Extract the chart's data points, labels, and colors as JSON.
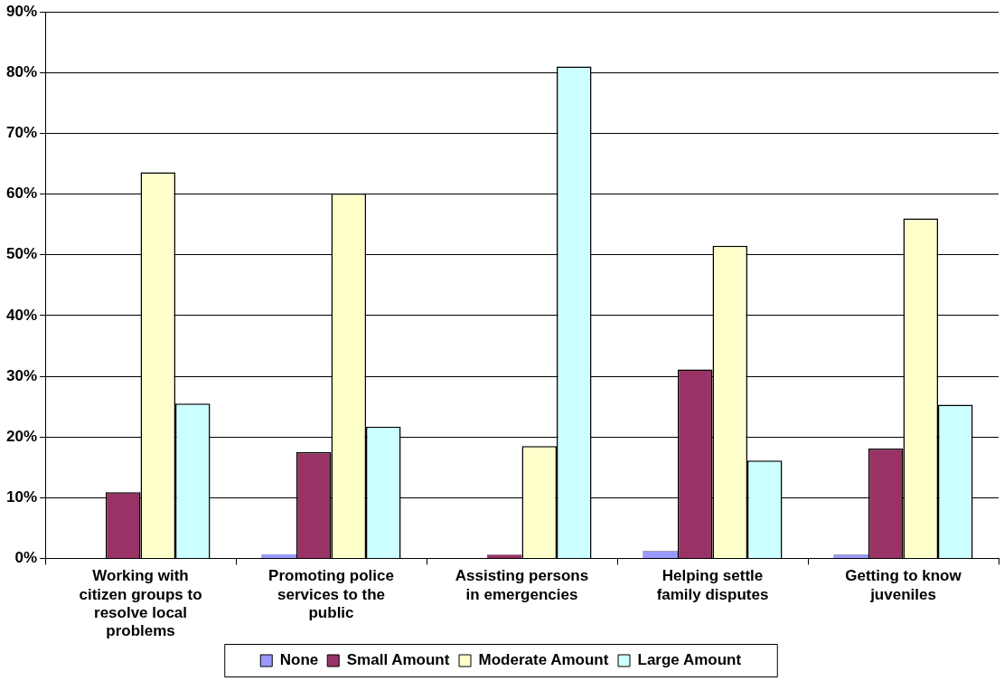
{
  "chart_data": {
    "type": "bar",
    "categories": [
      "Working with citizen groups to resolve local problems",
      "Promoting police services to the public",
      "Assisting persons in emergencies",
      "Helping settle family disputes",
      "Getting to know juveniles"
    ],
    "series": [
      {
        "name": "None",
        "color": "#9999ff",
        "values": [
          0,
          0.7,
          0,
          1.2,
          0.6
        ]
      },
      {
        "name": "Small Amount",
        "color": "#993366",
        "values": [
          10.9,
          17.5,
          0.6,
          31.1,
          18.1
        ]
      },
      {
        "name": "Moderate Amount",
        "color": "#ffffcc",
        "values": [
          63.6,
          60.1,
          18.5,
          51.5,
          56.0
        ]
      },
      {
        "name": "Large Amount",
        "color": "#ccffff",
        "values": [
          25.5,
          21.7,
          81.0,
          16.1,
          25.3
        ]
      }
    ],
    "ylim": [
      0,
      90
    ],
    "yticks": [
      {
        "value": 0,
        "label": "0%"
      },
      {
        "value": 10,
        "label": "10%"
      },
      {
        "value": 20,
        "label": "20%"
      },
      {
        "value": 30,
        "label": "30%"
      },
      {
        "value": 40,
        "label": "40%"
      },
      {
        "value": 50,
        "label": "50%"
      },
      {
        "value": 60,
        "label": "60%"
      },
      {
        "value": 70,
        "label": "70%"
      },
      {
        "value": 80,
        "label": "80%"
      },
      {
        "value": 90,
        "label": "90%"
      }
    ],
    "grid": "y",
    "legend": "bottom"
  }
}
